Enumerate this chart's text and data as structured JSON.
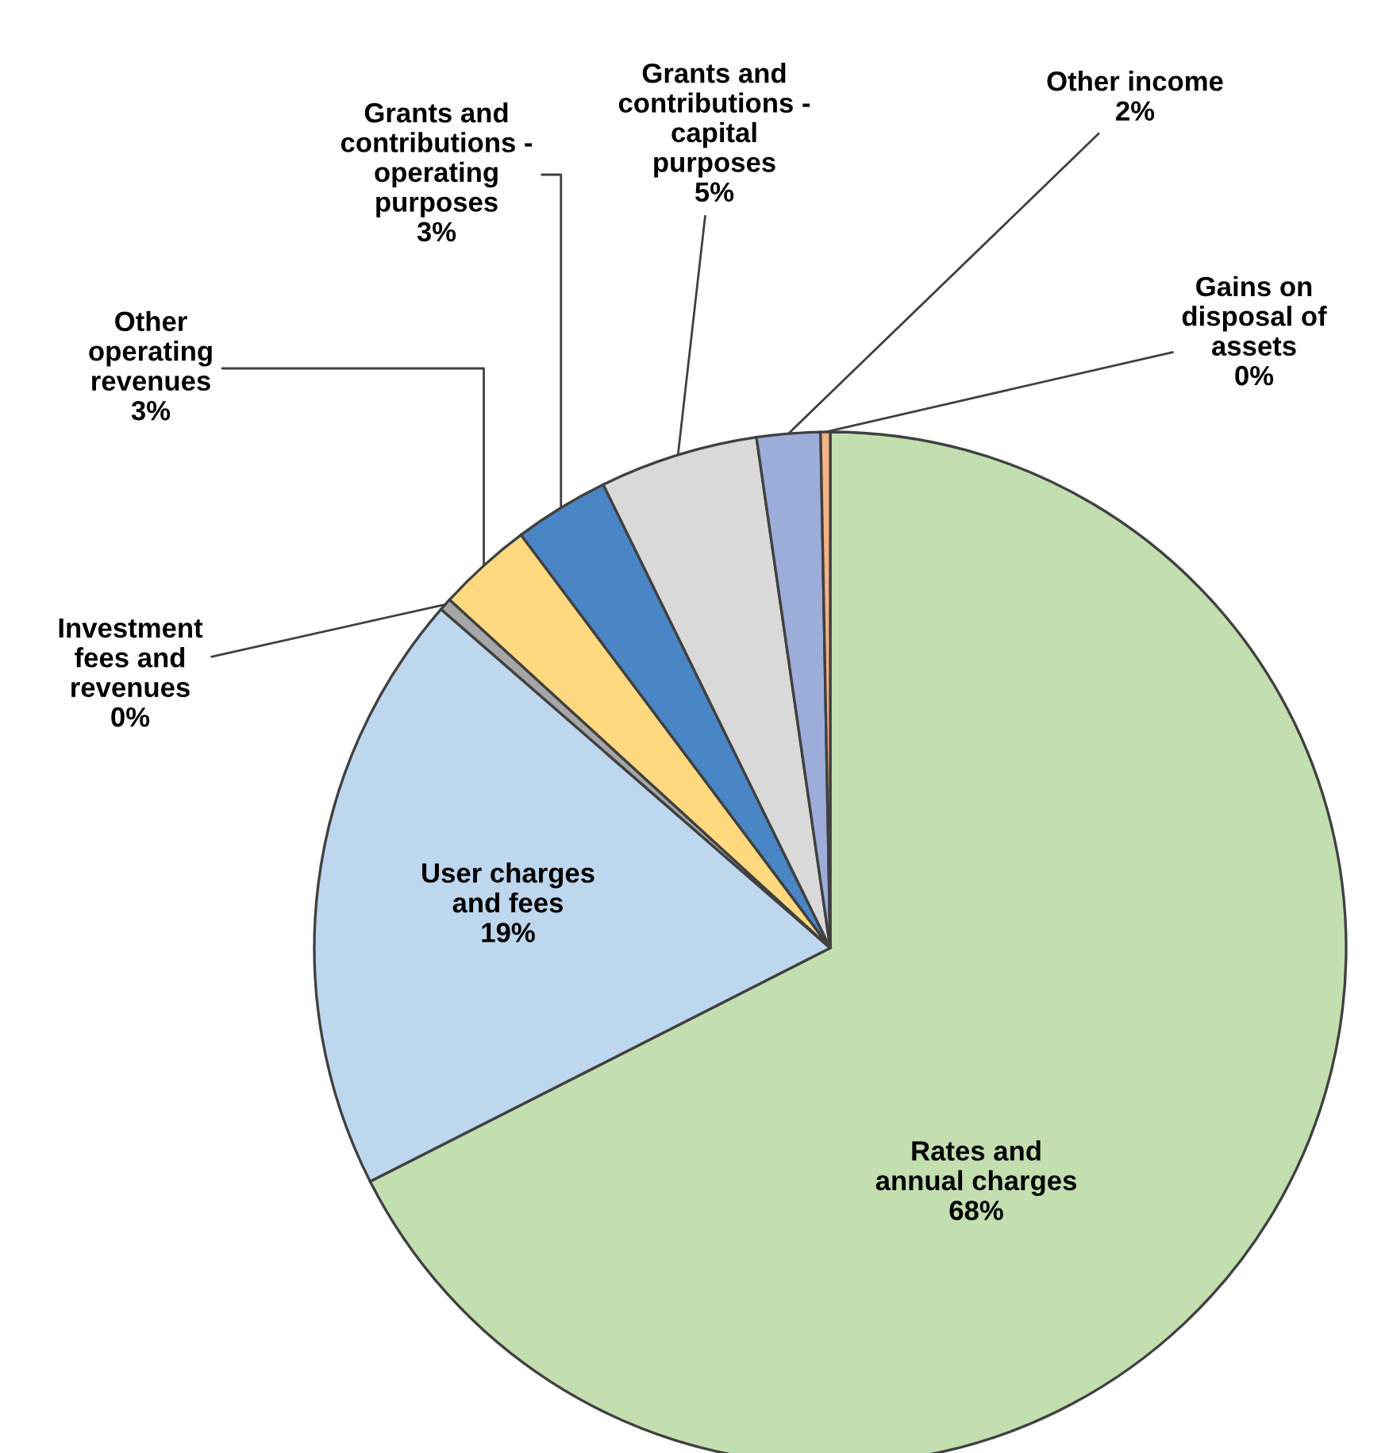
{
  "chart_data": {
    "type": "pie",
    "categories": [
      "Rates and annual charges",
      "User charges and fees",
      "Investment fees and revenues",
      "Other operating revenues",
      "Grants and contributions - operating purposes",
      "Grants and contributions - capital purposes",
      "Other income",
      "Gains on disposal of assets"
    ],
    "values": [
      68,
      19,
      0.4,
      3,
      3,
      5,
      2,
      0.3
    ],
    "value_labels": [
      "68%",
      "19%",
      "0%",
      "3%",
      "3%",
      "5%",
      "2%",
      "0%"
    ],
    "colors": [
      "#c3dfb0",
      "#bdd7ee",
      "#a6a6a6",
      "#ffd97f",
      "#4a86c5",
      "#d9d9d9",
      "#9dadd9",
      "#f4b183"
    ]
  }
}
